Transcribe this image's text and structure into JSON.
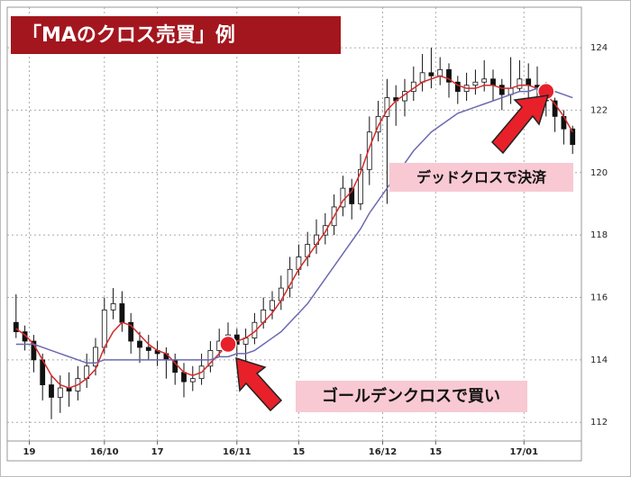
{
  "chart_data": {
    "type": "candlestick",
    "title": "「MAのクロス売買」例",
    "open": [
      115.2,
      114.9,
      114.6,
      114.0,
      113.2,
      112.8,
      113.1,
      113.0,
      113.4,
      113.8,
      114.4,
      115.6,
      115.8,
      115.2,
      114.6,
      114.4,
      114.3,
      114.2,
      114.0,
      113.6,
      113.3,
      113.4,
      113.8,
      114.3,
      114.6,
      114.8,
      114.5,
      114.7,
      115.2,
      115.6,
      115.9,
      116.3,
      116.9,
      117.3,
      117.7,
      118.0,
      118.3,
      118.9,
      119.5,
      119.0,
      120.1,
      121.3,
      121.8,
      122.4,
      122.3,
      122.6,
      122.9,
      123.2,
      123.1,
      123.3,
      122.9,
      122.6,
      122.8,
      122.9,
      123.0,
      122.8,
      122.5,
      122.7,
      123.0,
      122.8,
      122.7,
      122.3,
      121.8,
      121.4
    ],
    "high": [
      116.1,
      115.1,
      114.8,
      114.2,
      113.5,
      113.5,
      113.6,
      113.8,
      114.2,
      114.7,
      116.0,
      116.3,
      116.2,
      115.5,
      114.9,
      114.8,
      114.6,
      114.4,
      114.2,
      113.9,
      113.8,
      114.2,
      114.6,
      115.0,
      115.2,
      115.0,
      115.0,
      115.5,
      116.0,
      116.2,
      116.7,
      117.3,
      117.7,
      118.1,
      118.5,
      118.7,
      119.3,
      119.9,
      119.8,
      120.6,
      121.8,
      122.3,
      123.0,
      122.8,
      123.0,
      123.4,
      123.8,
      124.0,
      123.7,
      123.5,
      123.1,
      123.2,
      123.3,
      123.6,
      123.3,
      123.0,
      123.7,
      123.6,
      123.5,
      123.4,
      122.9,
      122.4,
      122.0,
      121.5
    ],
    "low": [
      114.7,
      114.3,
      113.6,
      112.7,
      112.1,
      112.3,
      112.5,
      112.7,
      113.1,
      113.5,
      114.2,
      115.3,
      114.9,
      114.2,
      113.9,
      114.0,
      113.8,
      113.4,
      113.2,
      112.8,
      113.0,
      113.2,
      113.6,
      114.1,
      114.3,
      114.1,
      113.8,
      114.5,
      115.0,
      115.3,
      115.6,
      116.0,
      116.7,
      117.0,
      117.4,
      117.7,
      118.0,
      118.6,
      118.5,
      118.8,
      119.6,
      121.0,
      119.0,
      121.5,
      121.8,
      122.3,
      122.6,
      122.7,
      122.8,
      122.4,
      122.2,
      122.3,
      122.5,
      122.6,
      122.3,
      122.0,
      122.2,
      122.6,
      122.4,
      122.3,
      121.8,
      121.3,
      120.9,
      120.6
    ],
    "close": [
      114.9,
      114.6,
      114.0,
      113.2,
      112.8,
      113.1,
      113.0,
      113.4,
      113.8,
      114.4,
      115.6,
      115.8,
      115.2,
      114.6,
      114.4,
      114.3,
      114.2,
      114.0,
      113.6,
      113.3,
      113.4,
      113.8,
      114.3,
      114.6,
      114.8,
      114.5,
      114.7,
      115.2,
      115.6,
      115.9,
      116.3,
      116.9,
      117.3,
      117.7,
      118.0,
      118.3,
      118.9,
      119.5,
      119.0,
      120.1,
      121.3,
      121.8,
      122.4,
      122.3,
      122.6,
      122.9,
      123.2,
      123.1,
      123.3,
      122.9,
      122.6,
      122.8,
      122.9,
      123.0,
      122.8,
      122.5,
      122.7,
      123.0,
      122.8,
      122.7,
      122.3,
      121.8,
      121.4,
      120.9
    ],
    "series": [
      {
        "color": "#d42a2a",
        "values": [
          115.0,
          114.8,
          114.5,
          114.0,
          113.5,
          113.2,
          113.1,
          113.2,
          113.4,
          113.7,
          114.4,
          114.9,
          115.2,
          115.1,
          114.8,
          114.5,
          114.3,
          114.2,
          113.9,
          113.6,
          113.5,
          113.6,
          113.9,
          114.2,
          114.5,
          114.6,
          114.7,
          114.9,
          115.2,
          115.5,
          115.9,
          116.4,
          116.9,
          117.3,
          117.7,
          118.1,
          118.6,
          119.1,
          119.4,
          120.0,
          120.8,
          121.5,
          122.0,
          122.3,
          122.5,
          122.7,
          122.9,
          123.0,
          123.1,
          123.0,
          122.8,
          122.7,
          122.7,
          122.8,
          122.8,
          122.7,
          122.7,
          122.8,
          122.8,
          122.7,
          122.5,
          122.2,
          121.8,
          121.3
        ]
      },
      {
        "color": "#6a6ab0",
        "values": [
          114.5,
          114.5,
          114.5,
          114.4,
          114.3,
          114.2,
          114.1,
          114.0,
          113.9,
          113.9,
          114.0,
          114.0,
          114.0,
          114.0,
          114.0,
          114.0,
          114.0,
          114.0,
          114.0,
          114.0,
          114.0,
          114.0,
          114.0,
          114.1,
          114.1,
          114.2,
          114.2,
          114.3,
          114.5,
          114.7,
          114.9,
          115.2,
          115.5,
          115.8,
          116.2,
          116.6,
          117.0,
          117.4,
          117.8,
          118.2,
          118.7,
          119.1,
          119.5,
          119.9,
          120.3,
          120.7,
          121.0,
          121.3,
          121.5,
          121.7,
          121.9,
          122.0,
          122.1,
          122.2,
          122.3,
          122.4,
          122.5,
          122.6,
          122.6,
          122.7,
          122.7,
          122.6,
          122.5,
          122.4
        ]
      }
    ],
    "markers": [
      {
        "x": 24,
        "y": 114.5,
        "color": "#e8202a"
      },
      {
        "x": 60,
        "y": 122.6,
        "color": "#e8202a"
      }
    ],
    "annotations": [
      "ゴールデンクロスで買い",
      "デッドクロスで決済"
    ],
    "xlim": [
      -1,
      64
    ],
    "xticks": [
      {
        "value": 1.5,
        "label": "19"
      },
      {
        "value": 10,
        "label": "16/10"
      },
      {
        "value": 16,
        "label": "17"
      },
      {
        "value": 25,
        "label": "16/11"
      },
      {
        "value": 32,
        "label": "15"
      },
      {
        "value": 41.5,
        "label": "16/12"
      },
      {
        "value": 47.5,
        "label": "15"
      },
      {
        "value": 57.5,
        "label": "17/01"
      }
    ],
    "ylim": [
      111.4,
      125.3
    ],
    "yticks": [
      112,
      114,
      116,
      118,
      120,
      122,
      124
    ],
    "grid": true
  }
}
